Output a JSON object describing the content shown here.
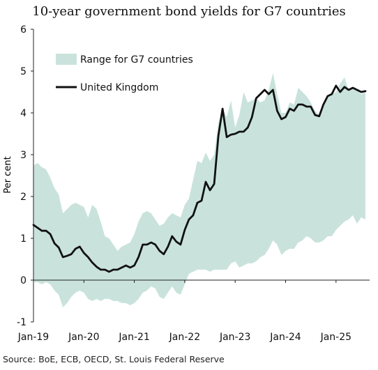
{
  "chart_data": {
    "type": "area",
    "title": "10-year government bond yields for G7 countries",
    "xlabel": "",
    "ylabel": "Per cent",
    "ylim": [
      -1,
      6
    ],
    "yticks": [
      "-1",
      "0",
      "1",
      "2",
      "3",
      "4",
      "5",
      "6"
    ],
    "xlim": [
      "2019-01",
      "2025-09"
    ],
    "xticks": [
      {
        "label": "Jan-19",
        "date": "2019-01"
      },
      {
        "label": "Jan-20",
        "date": "2020-01"
      },
      {
        "label": "Jan-21",
        "date": "2021-01"
      },
      {
        "label": "Jan-22",
        "date": "2022-01"
      },
      {
        "label": "Jan-23",
        "date": "2023-01"
      },
      {
        "label": "Jan-24",
        "date": "2024-01"
      },
      {
        "label": "Jan-25",
        "date": "2025-01"
      }
    ],
    "legend_placement": "top-left",
    "grid": false,
    "series": [
      {
        "name": "Range for G7 countries",
        "kind": "band",
        "color": "#c9e3dc",
        "x": [
          "2019-01",
          "2019-02",
          "2019-03",
          "2019-04",
          "2019-05",
          "2019-06",
          "2019-07",
          "2019-08",
          "2019-09",
          "2019-10",
          "2019-11",
          "2019-12",
          "2020-01",
          "2020-02",
          "2020-03",
          "2020-04",
          "2020-05",
          "2020-06",
          "2020-07",
          "2020-08",
          "2020-09",
          "2020-10",
          "2020-11",
          "2020-12",
          "2021-01",
          "2021-02",
          "2021-03",
          "2021-04",
          "2021-05",
          "2021-06",
          "2021-07",
          "2021-08",
          "2021-09",
          "2021-10",
          "2021-11",
          "2021-12",
          "2022-01",
          "2022-02",
          "2022-03",
          "2022-04",
          "2022-05",
          "2022-06",
          "2022-07",
          "2022-08",
          "2022-09",
          "2022-10",
          "2022-11",
          "2022-12",
          "2023-01",
          "2023-02",
          "2023-03",
          "2023-04",
          "2023-05",
          "2023-06",
          "2023-07",
          "2023-08",
          "2023-09",
          "2023-10",
          "2023-11",
          "2023-12",
          "2024-01",
          "2024-02",
          "2024-03",
          "2024-04",
          "2024-05",
          "2024-06",
          "2024-07",
          "2024-08",
          "2024-09",
          "2024-10",
          "2024-11",
          "2024-12",
          "2025-01",
          "2025-02",
          "2025-03",
          "2025-04",
          "2025-05",
          "2025-06",
          "2025-07",
          "2025-08"
        ],
        "low": [
          -0.05,
          -0.05,
          -0.1,
          -0.05,
          -0.1,
          -0.25,
          -0.35,
          -0.65,
          -0.55,
          -0.4,
          -0.3,
          -0.25,
          -0.3,
          -0.45,
          -0.5,
          -0.45,
          -0.5,
          -0.45,
          -0.45,
          -0.5,
          -0.5,
          -0.55,
          -0.55,
          -0.6,
          -0.55,
          -0.45,
          -0.3,
          -0.25,
          -0.15,
          -0.2,
          -0.4,
          -0.45,
          -0.3,
          -0.15,
          -0.3,
          -0.35,
          -0.1,
          0.15,
          0.2,
          0.25,
          0.25,
          0.25,
          0.2,
          0.25,
          0.25,
          0.25,
          0.25,
          0.4,
          0.45,
          0.3,
          0.35,
          0.4,
          0.4,
          0.45,
          0.55,
          0.6,
          0.75,
          0.95,
          0.85,
          0.6,
          0.7,
          0.75,
          0.75,
          0.9,
          0.95,
          1.05,
          1.0,
          0.9,
          0.9,
          0.95,
          1.05,
          1.05,
          1.2,
          1.3,
          1.4,
          1.45,
          1.55,
          1.35,
          1.5,
          1.45
        ],
        "high": [
          2.75,
          2.8,
          2.7,
          2.65,
          2.45,
          2.2,
          2.05,
          1.6,
          1.7,
          1.8,
          1.85,
          1.8,
          1.75,
          1.5,
          1.8,
          1.7,
          1.4,
          1.05,
          1.0,
          0.85,
          0.7,
          0.8,
          0.85,
          0.9,
          1.1,
          1.4,
          1.6,
          1.65,
          1.6,
          1.45,
          1.3,
          1.35,
          1.5,
          1.6,
          1.55,
          1.5,
          1.8,
          1.95,
          2.4,
          2.85,
          2.8,
          3.05,
          2.85,
          3.0,
          3.75,
          4.1,
          3.9,
          4.3,
          3.65,
          3.95,
          4.5,
          4.25,
          4.3,
          4.35,
          4.25,
          4.3,
          4.55,
          4.95,
          4.45,
          4.0,
          4.0,
          4.25,
          4.2,
          4.6,
          4.5,
          4.4,
          4.25,
          4.05,
          3.95,
          4.2,
          4.35,
          4.45,
          4.5,
          4.7,
          4.85,
          4.55,
          4.6,
          4.55,
          4.45,
          4.5
        ]
      },
      {
        "name": "United Kingdom",
        "kind": "line",
        "color": "#111111",
        "x": [
          "2019-01",
          "2019-02",
          "2019-03",
          "2019-04",
          "2019-05",
          "2019-06",
          "2019-07",
          "2019-08",
          "2019-09",
          "2019-10",
          "2019-11",
          "2019-12",
          "2020-01",
          "2020-02",
          "2020-03",
          "2020-04",
          "2020-05",
          "2020-06",
          "2020-07",
          "2020-08",
          "2020-09",
          "2020-10",
          "2020-11",
          "2020-12",
          "2021-01",
          "2021-02",
          "2021-03",
          "2021-04",
          "2021-05",
          "2021-06",
          "2021-07",
          "2021-08",
          "2021-09",
          "2021-10",
          "2021-11",
          "2021-12",
          "2022-01",
          "2022-02",
          "2022-03",
          "2022-04",
          "2022-05",
          "2022-06",
          "2022-07",
          "2022-08",
          "2022-09",
          "2022-10",
          "2022-11",
          "2022-12",
          "2023-01",
          "2023-02",
          "2023-03",
          "2023-04",
          "2023-05",
          "2023-06",
          "2023-07",
          "2023-08",
          "2023-09",
          "2023-10",
          "2023-11",
          "2023-12",
          "2024-01",
          "2024-02",
          "2024-03",
          "2024-04",
          "2024-05",
          "2024-06",
          "2024-07",
          "2024-08",
          "2024-09",
          "2024-10",
          "2024-11",
          "2024-12",
          "2025-01",
          "2025-02",
          "2025-03",
          "2025-04",
          "2025-05",
          "2025-06",
          "2025-07",
          "2025-08"
        ],
        "values": [
          1.32,
          1.25,
          1.18,
          1.18,
          1.1,
          0.88,
          0.78,
          0.55,
          0.58,
          0.62,
          0.75,
          0.8,
          0.65,
          0.55,
          0.42,
          0.32,
          0.25,
          0.25,
          0.2,
          0.25,
          0.25,
          0.3,
          0.35,
          0.3,
          0.35,
          0.55,
          0.85,
          0.85,
          0.9,
          0.85,
          0.7,
          0.62,
          0.8,
          1.05,
          0.92,
          0.85,
          1.2,
          1.45,
          1.55,
          1.85,
          1.9,
          2.35,
          2.15,
          2.3,
          3.45,
          4.1,
          3.42,
          3.48,
          3.5,
          3.55,
          3.55,
          3.65,
          3.9,
          4.35,
          4.45,
          4.55,
          4.45,
          4.55,
          4.05,
          3.85,
          3.9,
          4.1,
          4.05,
          4.2,
          4.2,
          4.15,
          4.15,
          3.95,
          3.92,
          4.2,
          4.4,
          4.45,
          4.65,
          4.5,
          4.62,
          4.55,
          4.6,
          4.55,
          4.5,
          4.52
        ]
      }
    ],
    "source": "Source: BoE, ECB, OECD, St. Louis Federal Reserve"
  }
}
